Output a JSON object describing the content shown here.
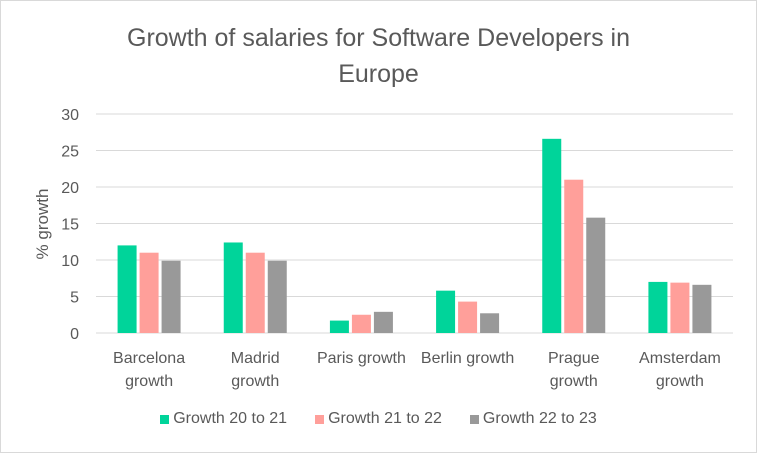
{
  "chart_data": {
    "type": "bar",
    "title": "Growth of salaries for Software Developers in Europe",
    "title_lines": [
      "Growth of salaries for Software Developers in",
      "Europe"
    ],
    "xlabel": "",
    "ylabel": "% growth",
    "ylim": [
      0,
      30
    ],
    "yticks": [
      0,
      5,
      10,
      15,
      20,
      25,
      30
    ],
    "grid": true,
    "legend_position": "bottom",
    "categories": [
      [
        "Barcelona",
        "growth"
      ],
      [
        "Madrid",
        "growth"
      ],
      [
        "Paris growth"
      ],
      [
        "Berlin growth"
      ],
      [
        "Prague",
        "growth"
      ],
      [
        "Amsterdam",
        "growth"
      ]
    ],
    "series": [
      {
        "name": "Growth 20 to 21",
        "color": "#00d49a",
        "values": [
          12.0,
          12.4,
          1.7,
          5.8,
          26.6,
          7.0
        ]
      },
      {
        "name": "Growth 21 to 22",
        "color": "#ff9f9a",
        "values": [
          11.0,
          11.0,
          2.5,
          4.3,
          21.0,
          6.9
        ]
      },
      {
        "name": "Growth 22 to 23",
        "color": "#999999",
        "values": [
          9.9,
          9.9,
          2.9,
          2.7,
          15.8,
          6.6
        ]
      }
    ]
  }
}
